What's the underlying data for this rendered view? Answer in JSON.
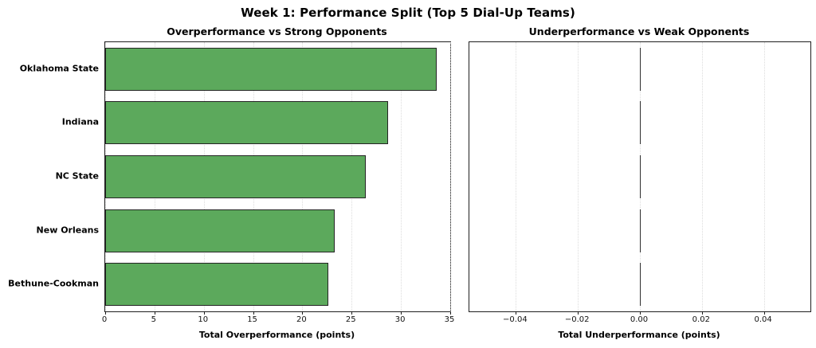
{
  "figure_title": "Week 1: Performance Split (Top 5 Dial-Up Teams)",
  "colors": {
    "bar_fill": "#5CA95C",
    "bar_edge": "#242424",
    "spine": "#1f1f1f",
    "grid": "#dcdcdc",
    "background": "#ffffff"
  },
  "chart_data": [
    {
      "type": "bar",
      "orientation": "horizontal",
      "title": "Overperformance vs Strong Opponents",
      "categories": [
        "Oklahoma State",
        "Indiana",
        "NC State",
        "New Orleans",
        "Bethune-Cookman"
      ],
      "values": [
        33.6,
        28.7,
        26.4,
        23.3,
        22.6
      ],
      "xlabel": "Total Overperformance (points)",
      "xlim": [
        0,
        35
      ],
      "xticks": [
        0,
        5,
        10,
        15,
        20,
        25,
        30,
        35
      ],
      "xtick_labels": [
        "0",
        "5",
        "10",
        "15",
        "20",
        "25",
        "30",
        "35"
      ],
      "grid": true,
      "legend": "none"
    },
    {
      "type": "bar",
      "orientation": "horizontal",
      "title": "Underperformance vs Weak Opponents",
      "categories": [
        "Oklahoma State",
        "Indiana",
        "NC State",
        "New Orleans",
        "Bethune-Cookman"
      ],
      "values": [
        0,
        0,
        0,
        0,
        0
      ],
      "xlabel": "Total Underperformance (points)",
      "xlim": [
        -0.055,
        0.055
      ],
      "xticks": [
        -0.04,
        -0.02,
        0,
        0.02,
        0.04
      ],
      "xtick_labels": [
        "−0.04",
        "−0.02",
        "0.00",
        "0.02",
        "0.04"
      ],
      "grid": true,
      "legend": "none"
    }
  ]
}
